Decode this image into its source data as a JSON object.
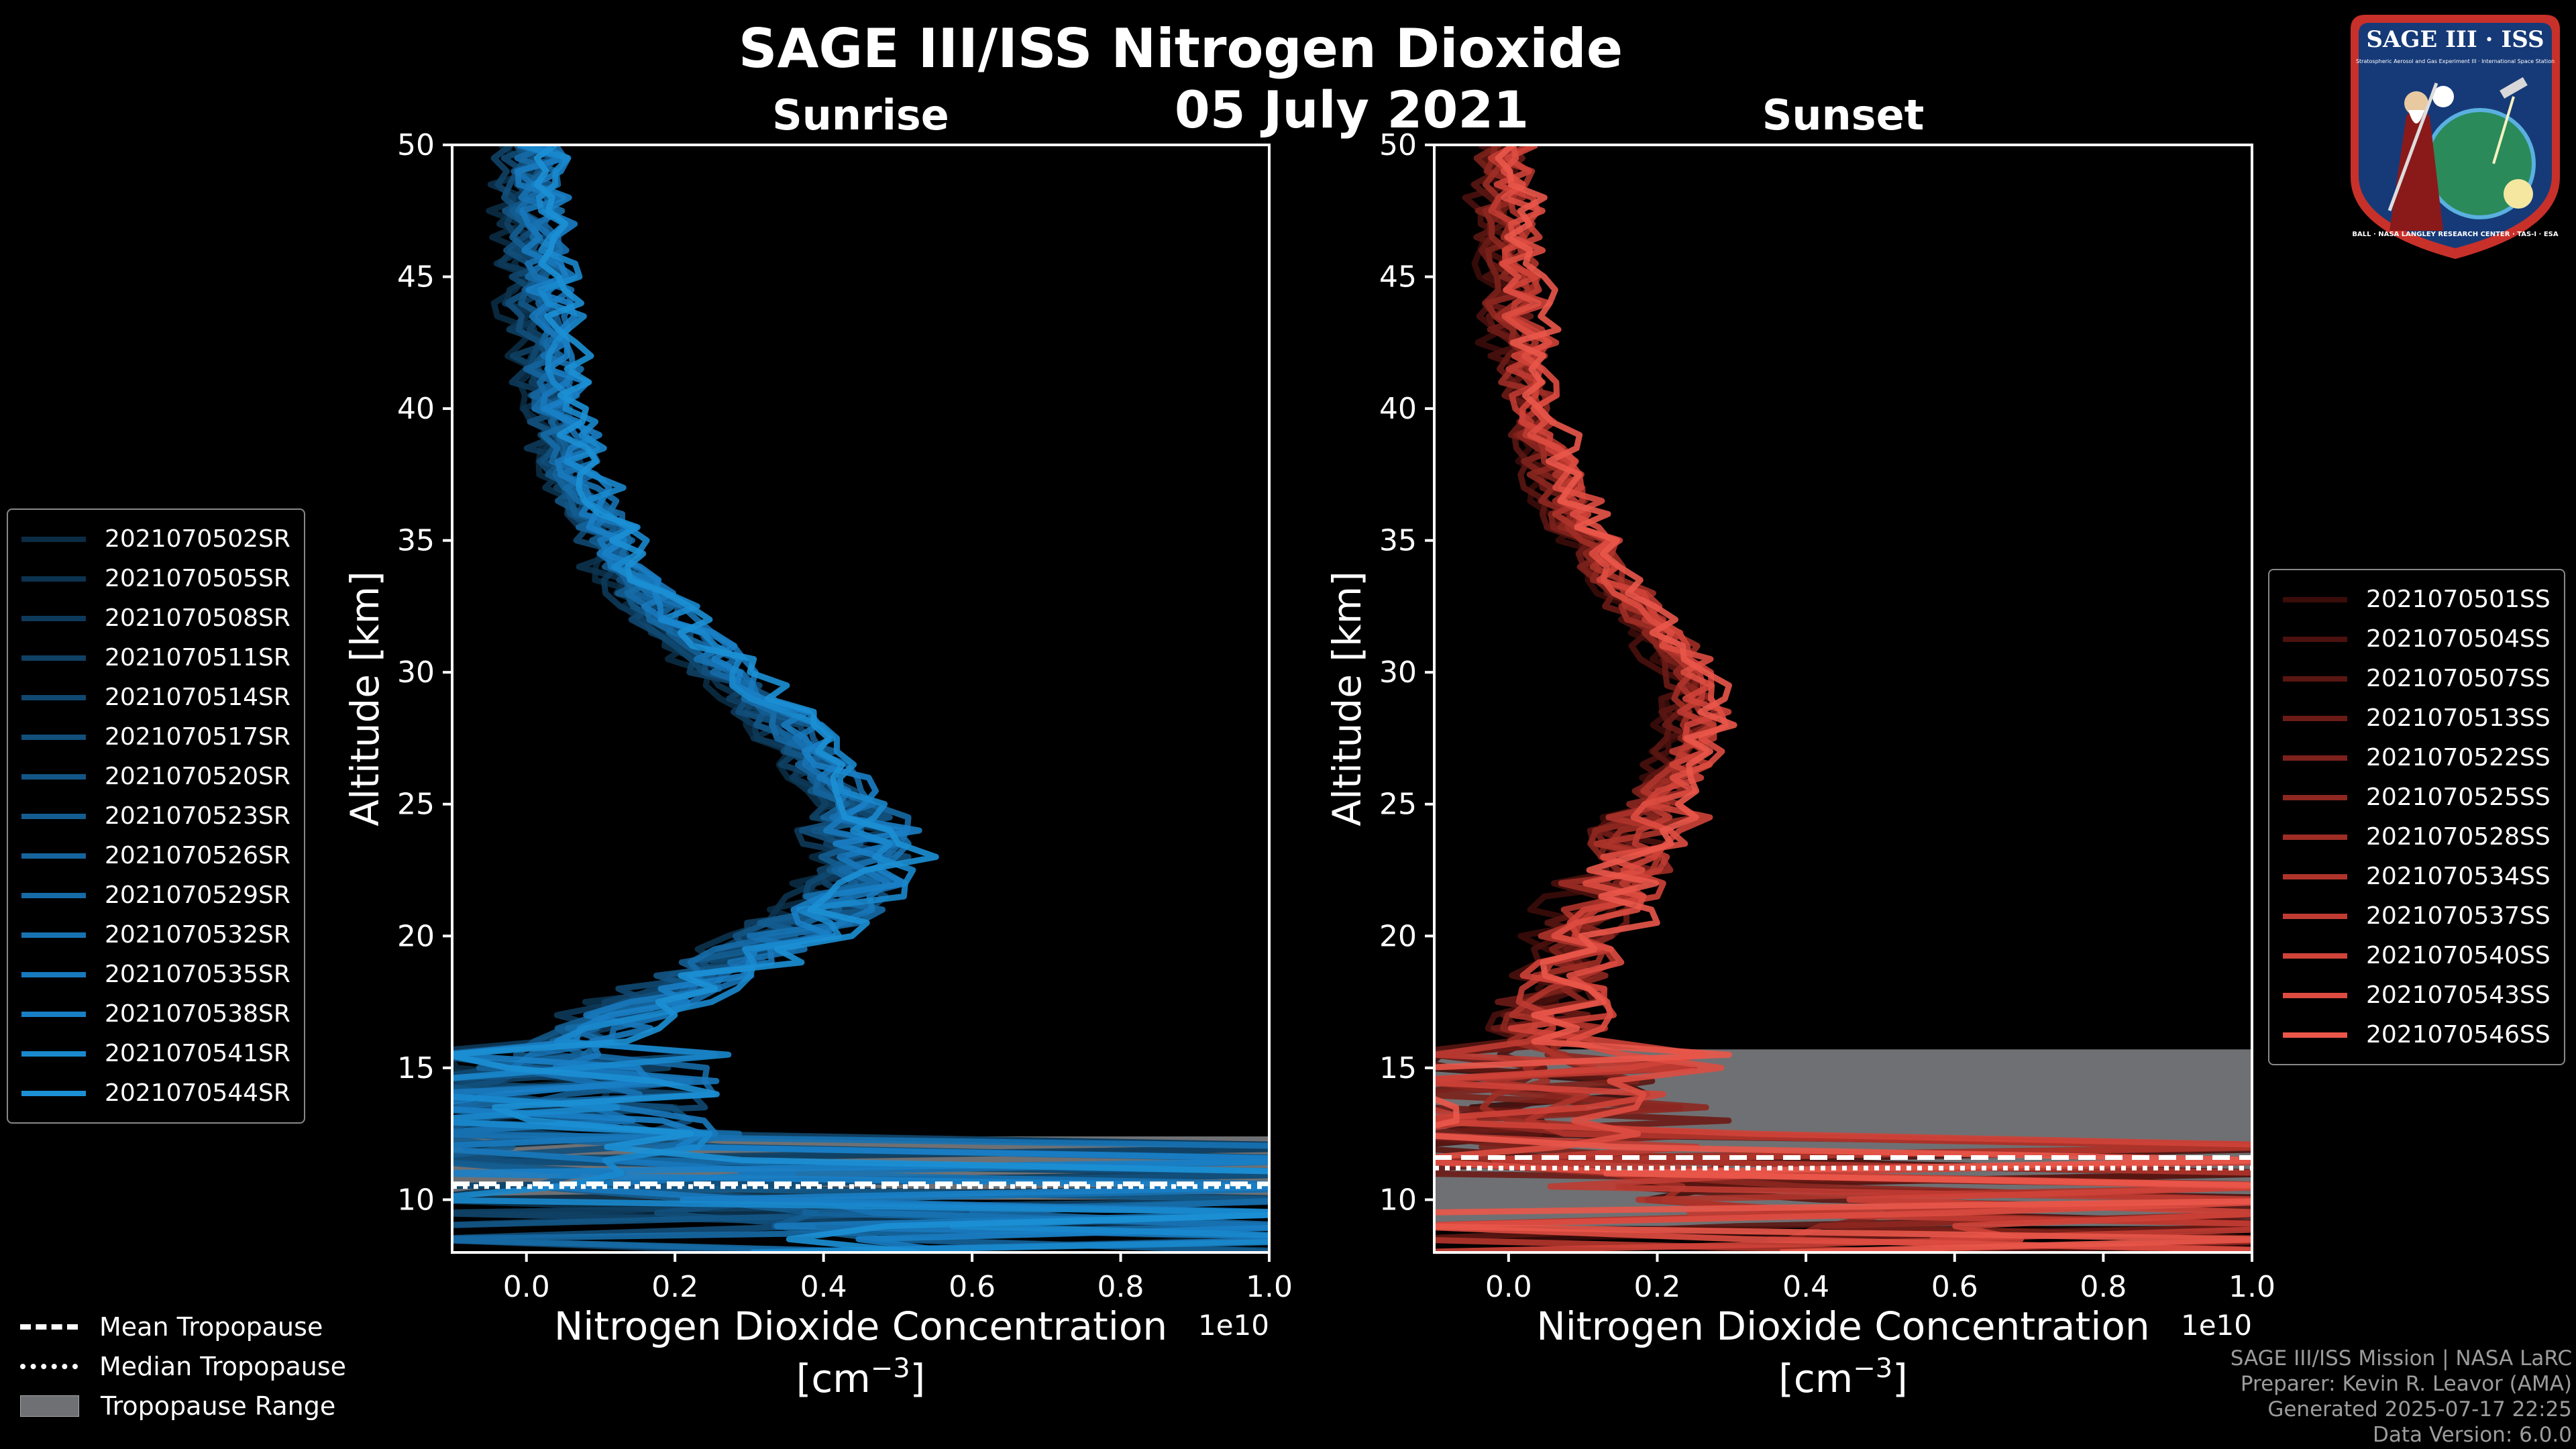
{
  "title": "SAGE III/ISS Nitrogen Dioxide",
  "date": "05 July 2021",
  "colors": {
    "background": "#000000",
    "sunrise_series": "#1a8fd0",
    "sunset_series": "#e8564a",
    "tropopause_range": "#6f7073",
    "axis": "#ffffff"
  },
  "chart_data": [
    {
      "type": "line",
      "panel": "left",
      "title": "Sunrise",
      "xlabel": "Nitrogen Dioxide Concentration",
      "xlabel_unit": "[cm",
      "xlabel_unit_exp": "−3",
      "xlabel_unit_close": "]",
      "ylabel": "Altitude [km]",
      "x_offset_label": "1e10",
      "xlim": [
        -0.1,
        1.0
      ],
      "ylim": [
        8,
        50
      ],
      "xticks": [
        0.0,
        0.2,
        0.4,
        0.6,
        0.8,
        1.0
      ],
      "xtick_labels": [
        "0.0",
        "0.2",
        "0.4",
        "0.6",
        "0.8",
        "1.0"
      ],
      "yticks": [
        10,
        15,
        20,
        25,
        30,
        35,
        40,
        45,
        50
      ],
      "ytick_labels": [
        "10",
        "15",
        "20",
        "25",
        "30",
        "35",
        "40",
        "45",
        "50"
      ],
      "profile_altitude_km": [
        9,
        10,
        11,
        12,
        13,
        14,
        15,
        16,
        17,
        18,
        19,
        20,
        21,
        22,
        23,
        24,
        25,
        26,
        27,
        28,
        29,
        30,
        31,
        32,
        33,
        34,
        35,
        36,
        37,
        38,
        39,
        40,
        41,
        42,
        43,
        44,
        45,
        46,
        47,
        48,
        49,
        50
      ],
      "profile_mean_1e10": [
        0.5,
        0.3,
        0.15,
        0.08,
        0.05,
        0.04,
        0.05,
        0.08,
        0.13,
        0.2,
        0.28,
        0.35,
        0.41,
        0.45,
        0.46,
        0.45,
        0.43,
        0.41,
        0.38,
        0.35,
        0.31,
        0.27,
        0.23,
        0.19,
        0.16,
        0.13,
        0.11,
        0.09,
        0.075,
        0.06,
        0.05,
        0.04,
        0.035,
        0.03,
        0.025,
        0.02,
        0.018,
        0.015,
        0.012,
        0.01,
        0.008,
        0.006
      ],
      "series": [
        {
          "name": "2021070502SR",
          "color": "#0a2c44"
        },
        {
          "name": "2021070505SR",
          "color": "#0c334f"
        },
        {
          "name": "2021070508SR",
          "color": "#0d3a5a"
        },
        {
          "name": "2021070511SR",
          "color": "#0f4165"
        },
        {
          "name": "2021070514SR",
          "color": "#104870"
        },
        {
          "name": "2021070517SR",
          "color": "#124f7b"
        },
        {
          "name": "2021070520SR",
          "color": "#135686"
        },
        {
          "name": "2021070523SR",
          "color": "#145d91"
        },
        {
          "name": "2021070526SR",
          "color": "#15649c"
        },
        {
          "name": "2021070529SR",
          "color": "#166ba7"
        },
        {
          "name": "2021070532SR",
          "color": "#1772b2"
        },
        {
          "name": "2021070535SR",
          "color": "#1879bd"
        },
        {
          "name": "2021070538SR",
          "color": "#1980c6"
        },
        {
          "name": "2021070541SR",
          "color": "#1a88cd"
        },
        {
          "name": "2021070544SR",
          "color": "#1c90d5"
        }
      ],
      "tropopause": {
        "mean_km": 10.6,
        "median_km": 10.5,
        "range_km": [
          10.0,
          12.4
        ]
      }
    },
    {
      "type": "line",
      "panel": "right",
      "title": "Sunset",
      "xlabel": "Nitrogen Dioxide Concentration",
      "xlabel_unit": "[cm",
      "xlabel_unit_exp": "−3",
      "xlabel_unit_close": "]",
      "ylabel": "Altitude [km]",
      "x_offset_label": "1e10",
      "xlim": [
        -0.1,
        1.0
      ],
      "ylim": [
        8,
        50
      ],
      "xticks": [
        0.0,
        0.2,
        0.4,
        0.6,
        0.8,
        1.0
      ],
      "xtick_labels": [
        "0.0",
        "0.2",
        "0.4",
        "0.6",
        "0.8",
        "1.0"
      ],
      "yticks": [
        10,
        15,
        20,
        25,
        30,
        35,
        40,
        45,
        50
      ],
      "ytick_labels": [
        "10",
        "15",
        "20",
        "25",
        "30",
        "35",
        "40",
        "45",
        "50"
      ],
      "profile_altitude_km": [
        9,
        10,
        11,
        12,
        13,
        14,
        15,
        16,
        17,
        18,
        19,
        20,
        21,
        22,
        23,
        24,
        25,
        26,
        27,
        28,
        29,
        30,
        31,
        32,
        33,
        34,
        35,
        36,
        37,
        38,
        39,
        40,
        41,
        42,
        43,
        44,
        45,
        46,
        47,
        48,
        49,
        50
      ],
      "profile_mean_1e10": [
        0.5,
        0.3,
        0.18,
        0.12,
        0.09,
        0.07,
        0.06,
        0.06,
        0.06,
        0.07,
        0.08,
        0.1,
        0.12,
        0.14,
        0.16,
        0.18,
        0.2,
        0.22,
        0.24,
        0.25,
        0.25,
        0.24,
        0.22,
        0.19,
        0.16,
        0.13,
        0.11,
        0.09,
        0.07,
        0.06,
        0.045,
        0.035,
        0.025,
        0.02,
        0.015,
        0.01,
        0.008,
        0.005,
        0.0,
        -0.005,
        -0.005,
        0.0
      ],
      "series": [
        {
          "name": "2021070501SS",
          "color": "#3a0c0a"
        },
        {
          "name": "2021070504SS",
          "color": "#4a110e"
        },
        {
          "name": "2021070507SS",
          "color": "#5a1612"
        },
        {
          "name": "2021070513SS",
          "color": "#6b1b16"
        },
        {
          "name": "2021070522SS",
          "color": "#7c211b"
        },
        {
          "name": "2021070525SS",
          "color": "#8d2720"
        },
        {
          "name": "2021070528SS",
          "color": "#9e2d25"
        },
        {
          "name": "2021070534SS",
          "color": "#ae342b"
        },
        {
          "name": "2021070537SS",
          "color": "#bf3b32"
        },
        {
          "name": "2021070540SS",
          "color": "#cf4339"
        },
        {
          "name": "2021070543SS",
          "color": "#de4c41"
        },
        {
          "name": "2021070546SS",
          "color": "#ea564a"
        }
      ],
      "tropopause": {
        "mean_km": 11.6,
        "median_km": 11.2,
        "range_km": [
          9.0,
          15.7
        ]
      }
    }
  ],
  "legend_tropopause": {
    "mean_label": "Mean Tropopause",
    "median_label": "Median Tropopause",
    "range_label": "Tropopause Range"
  },
  "credits": {
    "line1": "SAGE III/ISS Mission | NASA LaRC",
    "line2": "Preparer: Kevin R. Leavor (AMA)",
    "line3": "Generated 2025-07-17 22:25",
    "line4": "Data Version: 6.0.0"
  },
  "badge": {
    "title": "SAGE III · ISS",
    "subtitle": "Stratospheric Aerosol and Gas Experiment III · International Space Station",
    "ring_text": "BALL · NASA LANGLEY RESEARCH CENTER · TAS-I · ESA"
  }
}
